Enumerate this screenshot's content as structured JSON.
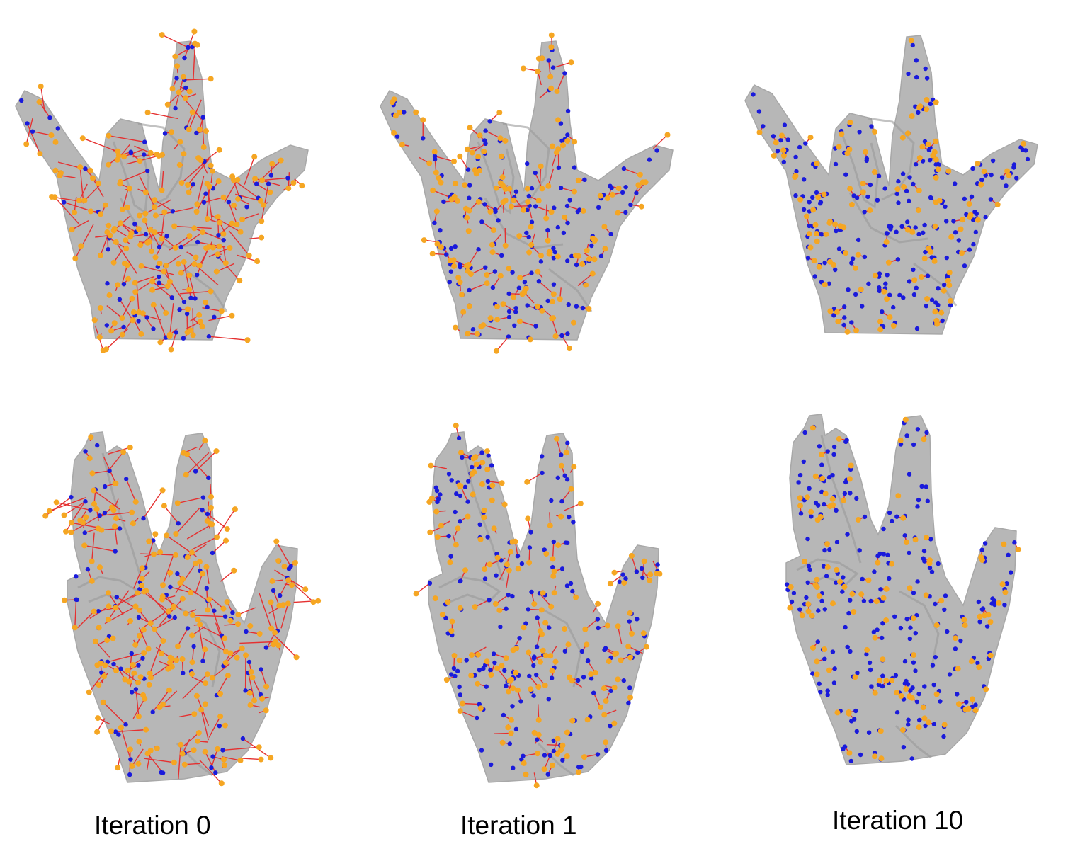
{
  "figure": {
    "captions": [
      "Iteration 0",
      "Iteration 1",
      "Iteration 10"
    ],
    "colors": {
      "hand": "#b7b7b7",
      "hand_shadow": "#9a9a9a",
      "source_points": "#f5a623",
      "target_points": "#1a1adb",
      "correspondence_lines": "#e53030"
    },
    "panels": [
      {
        "gesture": "rock-and-roll",
        "iteration": 0
      },
      {
        "gesture": "rock-and-roll",
        "iteration": 1
      },
      {
        "gesture": "rock-and-roll",
        "iteration": 10
      },
      {
        "gesture": "vulcan-salute",
        "iteration": 0
      },
      {
        "gesture": "vulcan-salute",
        "iteration": 1
      },
      {
        "gesture": "vulcan-salute",
        "iteration": 10
      }
    ]
  }
}
